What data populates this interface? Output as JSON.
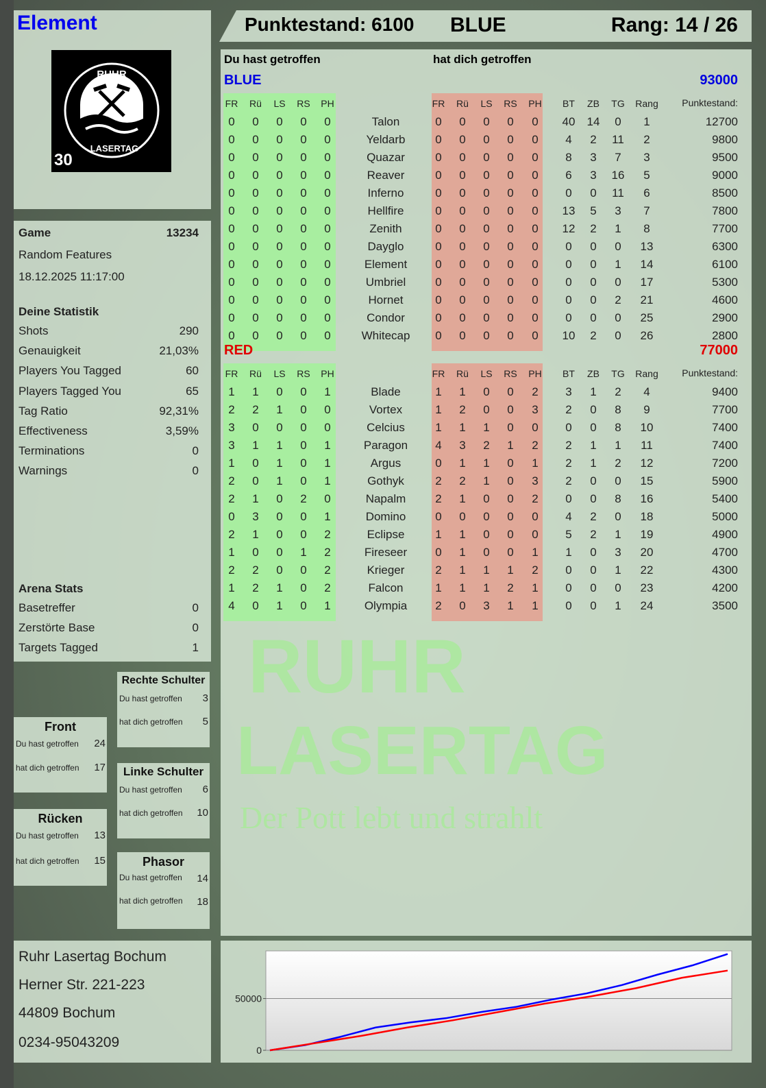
{
  "player": {
    "name": "Element",
    "logo_text": "RUHR LASERTAG",
    "logo_badge": "30"
  },
  "header": {
    "score_label": "Punktestand: 6100",
    "team": "BLUE",
    "rank_label": "Rang: 14 / 26"
  },
  "game": {
    "label": "Game",
    "id": "13234",
    "mode": "Random Features",
    "datetime": "18.12.2025 11:17:00"
  },
  "stats": {
    "title": "Deine Statistik",
    "items": [
      {
        "label": "Shots",
        "value": "290"
      },
      {
        "label": "Genauigkeit",
        "value": "21,03%"
      },
      {
        "label": "Players You Tagged",
        "value": "60"
      },
      {
        "label": "Players Tagged You",
        "value": "65"
      },
      {
        "label": "Tag Ratio",
        "value": "92,31%"
      },
      {
        "label": "Effectiveness",
        "value": "3,59%"
      },
      {
        "label": "Terminations",
        "value": "0"
      },
      {
        "label": "Warnings",
        "value": "0"
      }
    ]
  },
  "arena": {
    "title": "Arena Stats",
    "items": [
      {
        "label": "Basetreffer",
        "value": "0"
      },
      {
        "label": "Zerstörte Base",
        "value": "0"
      },
      {
        "label": "Targets Tagged",
        "value": "1"
      }
    ]
  },
  "zones": [
    {
      "title": "Rechte Schulter",
      "hit": "3",
      "got": "5"
    },
    {
      "title": "Front",
      "hit": "24",
      "got": "17"
    },
    {
      "title": "Linke Schulter",
      "hit": "6",
      "got": "10"
    },
    {
      "title": "Rücken",
      "hit": "13",
      "got": "15"
    },
    {
      "title": "Phasor",
      "hit": "14",
      "got": "18"
    }
  ],
  "zone_labels": {
    "hit": "Du hast getroffen",
    "got": "hat dich getroffen"
  },
  "address": [
    "Ruhr Lasertag Bochum",
    "Herner Str. 221-223",
    "44809 Bochum",
    "0234-95043209"
  ],
  "table": {
    "you_hit": "Du hast getroffen",
    "hit_you": "hat dich getroffen",
    "columns": [
      "FR",
      "Rü",
      "LS",
      "RS",
      "PH",
      "FR",
      "Rü",
      "LS",
      "RS",
      "PH",
      "BT",
      "ZB",
      "TG",
      "Rang",
      "Punktestand:"
    ],
    "teams": [
      {
        "name": "BLUE",
        "score": "93000",
        "color": "#0000e0",
        "rows": [
          [
            "0",
            "0",
            "0",
            "0",
            "0",
            "Talon",
            "0",
            "0",
            "0",
            "0",
            "0",
            "40",
            "14",
            "0",
            "1",
            "12700"
          ],
          [
            "0",
            "0",
            "0",
            "0",
            "0",
            "Yeldarb",
            "0",
            "0",
            "0",
            "0",
            "0",
            "4",
            "2",
            "11",
            "2",
            "9800"
          ],
          [
            "0",
            "0",
            "0",
            "0",
            "0",
            "Quazar",
            "0",
            "0",
            "0",
            "0",
            "0",
            "8",
            "3",
            "7",
            "3",
            "9500"
          ],
          [
            "0",
            "0",
            "0",
            "0",
            "0",
            "Reaver",
            "0",
            "0",
            "0",
            "0",
            "0",
            "6",
            "3",
            "16",
            "5",
            "9000"
          ],
          [
            "0",
            "0",
            "0",
            "0",
            "0",
            "Inferno",
            "0",
            "0",
            "0",
            "0",
            "0",
            "0",
            "0",
            "11",
            "6",
            "8500"
          ],
          [
            "0",
            "0",
            "0",
            "0",
            "0",
            "Hellfire",
            "0",
            "0",
            "0",
            "0",
            "0",
            "13",
            "5",
            "3",
            "7",
            "7800"
          ],
          [
            "0",
            "0",
            "0",
            "0",
            "0",
            "Zenith",
            "0",
            "0",
            "0",
            "0",
            "0",
            "12",
            "2",
            "1",
            "8",
            "7700"
          ],
          [
            "0",
            "0",
            "0",
            "0",
            "0",
            "Dayglo",
            "0",
            "0",
            "0",
            "0",
            "0",
            "0",
            "0",
            "0",
            "13",
            "6300"
          ],
          [
            "0",
            "0",
            "0",
            "0",
            "0",
            "Element",
            "0",
            "0",
            "0",
            "0",
            "0",
            "0",
            "0",
            "1",
            "14",
            "6100"
          ],
          [
            "0",
            "0",
            "0",
            "0",
            "0",
            "Umbriel",
            "0",
            "0",
            "0",
            "0",
            "0",
            "0",
            "0",
            "0",
            "17",
            "5300"
          ],
          [
            "0",
            "0",
            "0",
            "0",
            "0",
            "Hornet",
            "0",
            "0",
            "0",
            "0",
            "0",
            "0",
            "0",
            "2",
            "21",
            "4600"
          ],
          [
            "0",
            "0",
            "0",
            "0",
            "0",
            "Condor",
            "0",
            "0",
            "0",
            "0",
            "0",
            "0",
            "0",
            "0",
            "25",
            "2900"
          ],
          [
            "0",
            "0",
            "0",
            "0",
            "0",
            "Whitecap",
            "0",
            "0",
            "0",
            "0",
            "0",
            "10",
            "2",
            "0",
            "26",
            "2800"
          ]
        ]
      },
      {
        "name": "RED",
        "score": "77000",
        "color": "#e00000",
        "rows": [
          [
            "1",
            "1",
            "0",
            "0",
            "1",
            "Blade",
            "1",
            "1",
            "0",
            "0",
            "2",
            "3",
            "1",
            "2",
            "4",
            "9400"
          ],
          [
            "2",
            "2",
            "1",
            "0",
            "0",
            "Vortex",
            "1",
            "2",
            "0",
            "0",
            "3",
            "2",
            "0",
            "8",
            "9",
            "7700"
          ],
          [
            "3",
            "0",
            "0",
            "0",
            "0",
            "Celcius",
            "1",
            "1",
            "1",
            "0",
            "0",
            "0",
            "0",
            "8",
            "10",
            "7400"
          ],
          [
            "3",
            "1",
            "1",
            "0",
            "1",
            "Paragon",
            "4",
            "3",
            "2",
            "1",
            "2",
            "2",
            "1",
            "1",
            "11",
            "7400"
          ],
          [
            "1",
            "0",
            "1",
            "0",
            "1",
            "Argus",
            "0",
            "1",
            "1",
            "0",
            "1",
            "2",
            "1",
            "2",
            "12",
            "7200"
          ],
          [
            "2",
            "0",
            "1",
            "0",
            "1",
            "Gothyk",
            "2",
            "2",
            "1",
            "0",
            "3",
            "2",
            "0",
            "0",
            "15",
            "5900"
          ],
          [
            "2",
            "1",
            "0",
            "2",
            "0",
            "Napalm",
            "2",
            "1",
            "0",
            "0",
            "2",
            "0",
            "0",
            "8",
            "16",
            "5400"
          ],
          [
            "0",
            "3",
            "0",
            "0",
            "1",
            "Domino",
            "0",
            "0",
            "0",
            "0",
            "0",
            "4",
            "2",
            "0",
            "18",
            "5000"
          ],
          [
            "2",
            "1",
            "0",
            "0",
            "2",
            "Eclipse",
            "1",
            "1",
            "0",
            "0",
            "0",
            "5",
            "2",
            "1",
            "19",
            "4900"
          ],
          [
            "1",
            "0",
            "0",
            "1",
            "2",
            "Fireseer",
            "0",
            "1",
            "0",
            "0",
            "1",
            "1",
            "0",
            "3",
            "20",
            "4700"
          ],
          [
            "2",
            "2",
            "0",
            "0",
            "2",
            "Krieger",
            "2",
            "1",
            "1",
            "1",
            "2",
            "0",
            "0",
            "1",
            "22",
            "4300"
          ],
          [
            "1",
            "2",
            "1",
            "0",
            "2",
            "Falcon",
            "1",
            "1",
            "1",
            "2",
            "1",
            "0",
            "0",
            "0",
            "23",
            "4200"
          ],
          [
            "4",
            "0",
            "1",
            "0",
            "1",
            "Olympia",
            "2",
            "0",
            "3",
            "1",
            "1",
            "0",
            "0",
            "1",
            "24",
            "3500"
          ]
        ]
      }
    ]
  },
  "watermark": {
    "line1": "RUHR",
    "line2": "LASERTAG",
    "slogan": "Der Pott lebt und strahlt"
  },
  "colors": {
    "hit_band": "#a8eea0",
    "got_band": "#e0a898",
    "blue": "#0000e0",
    "red": "#e00000"
  },
  "chart_data": {
    "type": "line",
    "ylim": [
      0,
      96000
    ],
    "yticks": [
      0,
      50000
    ],
    "ytick_labels": [
      "0",
      "50000"
    ],
    "grid": true,
    "series": [
      {
        "color": "#0000ff",
        "values": [
          0,
          5000,
          13000,
          22000,
          27000,
          31000,
          37000,
          42000,
          49000,
          55000,
          63000,
          73000,
          82000,
          93000
        ]
      },
      {
        "color": "#ff0000",
        "values": [
          0,
          7000,
          14000,
          22000,
          29000,
          37000,
          45000,
          52000,
          60000,
          70000,
          77000
        ]
      }
    ]
  }
}
